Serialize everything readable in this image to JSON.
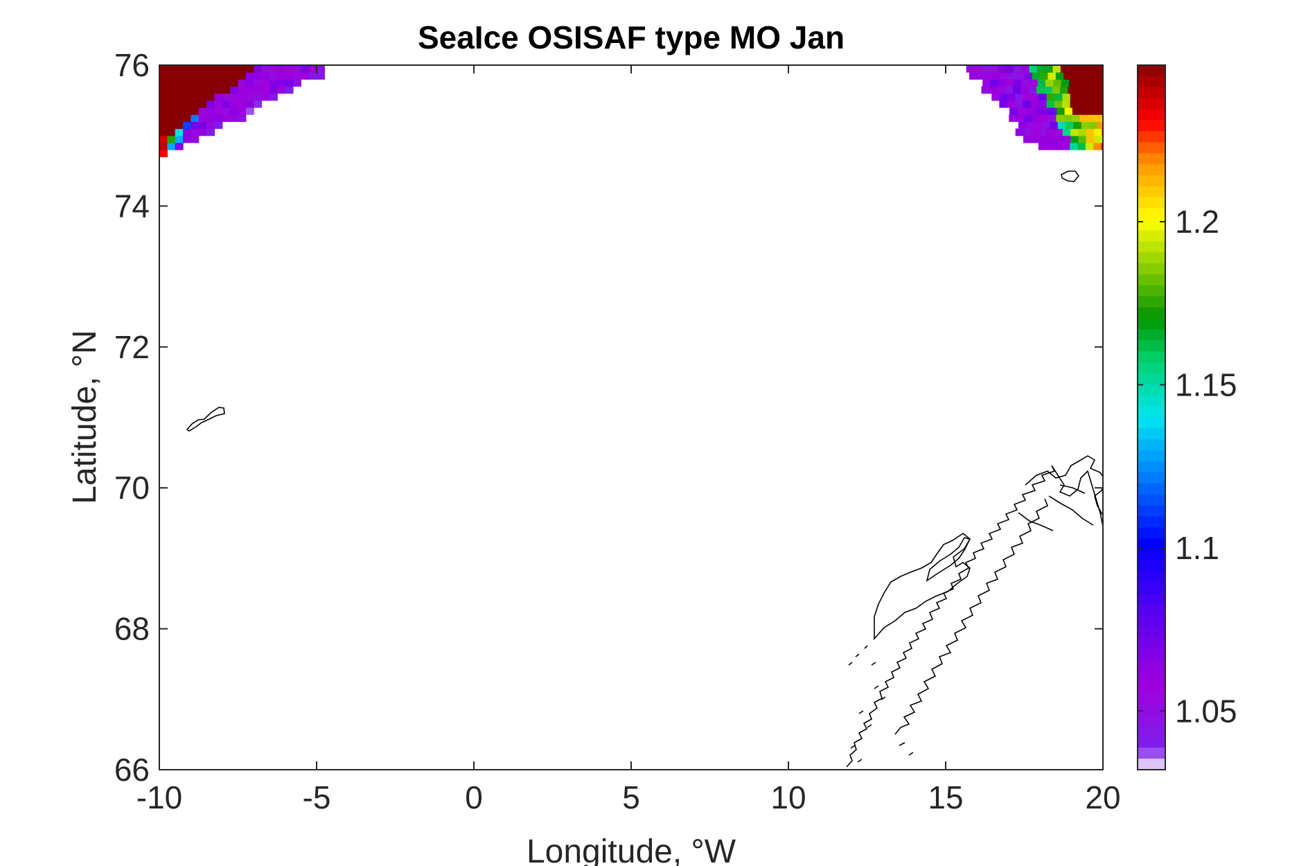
{
  "chart_data": {
    "type": "heatmap",
    "title": "SeaIce OSISAF type MO Jan",
    "xlabel": "Longitude, °W",
    "ylabel": "Latitude, °N",
    "xlim": [
      -10,
      20
    ],
    "ylim": [
      66,
      76
    ],
    "xticks": [
      -10,
      -5,
      0,
      5,
      10,
      15,
      20
    ],
    "yticks": [
      66,
      68,
      70,
      72,
      74,
      76
    ],
    "colorbar": {
      "range": [
        1.032,
        1.248
      ],
      "ticks": [
        "1.05",
        "1.1",
        "1.15",
        "1.2"
      ],
      "tick_values": [
        1.05,
        1.1,
        1.15,
        1.2
      ],
      "colormap": "jet-like (violet → blue → cyan → green → yellow → red → dark red), white for lowest bin"
    },
    "regions": [
      {
        "name": "north-west ice field",
        "lon_range": [
          -10,
          -4.3
        ],
        "lat_range": [
          74.5,
          76
        ],
        "values": "dark red (>1.24) in far NW corner, grading through green/yellow to violet (~1.04-1.07) toward the SE edge"
      },
      {
        "name": "north-east ice field",
        "lon_range": [
          15.5,
          20
        ],
        "lat_range": [
          74.8,
          76
        ],
        "values": "violet (~1.04) on the western edge, grading through green/yellow to dark red (>1.24) in the NE corner"
      }
    ],
    "grid": false,
    "legend": "none (colorbar on right)"
  }
}
